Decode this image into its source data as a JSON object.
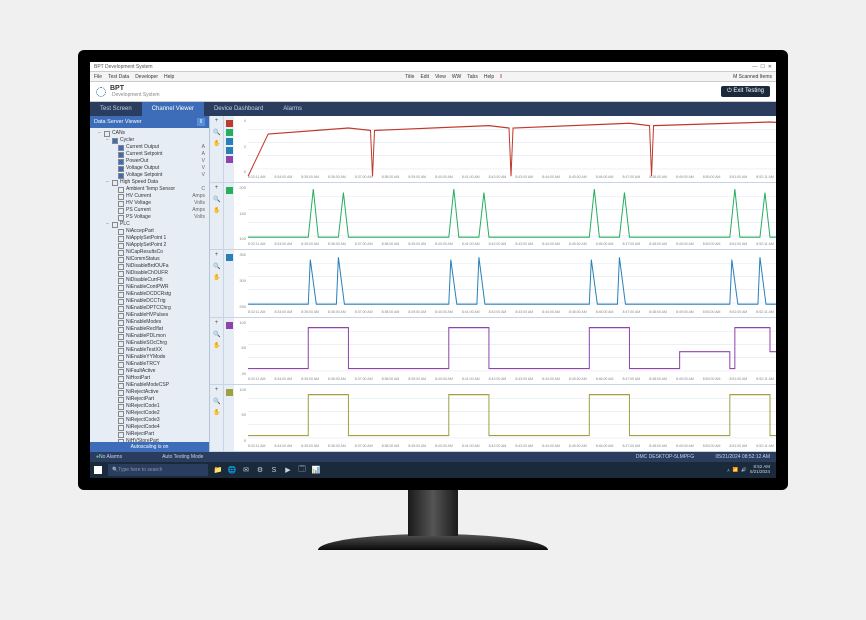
{
  "window": {
    "title": "BPT Development System",
    "menus": [
      "File",
      "Test Data",
      "Developer",
      "Help"
    ],
    "toolbar_right": [
      "Title",
      "Edit",
      "View",
      "WW",
      "Tabs",
      "Help"
    ],
    "scanned_items": "M Scanned Items"
  },
  "app": {
    "name": "BPT",
    "subtitle": "Development System",
    "exit_label": "Exit Testing"
  },
  "tabs": [
    {
      "label": "Test Screen",
      "active": false
    },
    {
      "label": "Channel Viewer",
      "active": true
    },
    {
      "label": "Device Dashboard",
      "active": false
    },
    {
      "label": "Alarms",
      "active": false
    }
  ],
  "sidebar": {
    "title": "Data Server Viewer",
    "footer": "Autoscaling is on",
    "tree": [
      {
        "ind": 1,
        "tog": "−",
        "cb": false,
        "label": "CANs"
      },
      {
        "ind": 2,
        "tog": "−",
        "cb": true,
        "label": "Cycler"
      },
      {
        "ind": 3,
        "cb": true,
        "label": "Current Output",
        "unit": "A"
      },
      {
        "ind": 3,
        "cb": true,
        "label": "Current Setpoint",
        "unit": "A"
      },
      {
        "ind": 3,
        "cb": true,
        "label": "PowerOut",
        "unit": "V"
      },
      {
        "ind": 3,
        "cb": true,
        "label": "Voltage Output",
        "unit": "V"
      },
      {
        "ind": 3,
        "cb": true,
        "label": "Voltage Setpoint",
        "unit": "V"
      },
      {
        "ind": 2,
        "tog": "−",
        "cb": false,
        "label": "High Speed Data"
      },
      {
        "ind": 3,
        "cb": false,
        "label": "Ambient Temp Sensor",
        "unit": "C"
      },
      {
        "ind": 3,
        "cb": false,
        "label": "HV Current",
        "unit": "Amps"
      },
      {
        "ind": 3,
        "cb": false,
        "label": "HV Voltage",
        "unit": "Volts"
      },
      {
        "ind": 3,
        "cb": false,
        "label": "PS Current",
        "unit": "Amps"
      },
      {
        "ind": 3,
        "cb": false,
        "label": "PS Voltage",
        "unit": "Volts"
      },
      {
        "ind": 2,
        "tog": "−",
        "cb": false,
        "label": "PLC"
      },
      {
        "ind": 3,
        "cb": false,
        "label": "NiAccepPart"
      },
      {
        "ind": 3,
        "cb": false,
        "label": "NiApplySetPoint 1"
      },
      {
        "ind": 3,
        "cb": false,
        "label": "NiApplySetPoint 2"
      },
      {
        "ind": 3,
        "cb": false,
        "label": "NiCapResultsCo"
      },
      {
        "ind": 3,
        "cb": false,
        "label": "NiCommStatus"
      },
      {
        "ind": 3,
        "cb": false,
        "label": "NiDisableBrdOUFa"
      },
      {
        "ind": 3,
        "cb": false,
        "label": "NiDisableChOUFR"
      },
      {
        "ind": 3,
        "cb": false,
        "label": "NiDisableCurrFlt"
      },
      {
        "ind": 3,
        "cb": false,
        "label": "NiEnableContPWR"
      },
      {
        "ind": 3,
        "cb": false,
        "label": "NiEnableDCDCRstg"
      },
      {
        "ind": 3,
        "cb": false,
        "label": "NiEnableDCCTrig"
      },
      {
        "ind": 3,
        "cb": false,
        "label": "NiEnableDPTCChrg"
      },
      {
        "ind": 3,
        "cb": false,
        "label": "NiEnableHVPulses"
      },
      {
        "ind": 3,
        "cb": false,
        "label": "NiEnableModes"
      },
      {
        "ind": 3,
        "cb": false,
        "label": "NiEnableReclflat"
      },
      {
        "ind": 3,
        "cb": false,
        "label": "NiEnablePDLmon"
      },
      {
        "ind": 3,
        "cb": false,
        "label": "NiEnableSOcChrg"
      },
      {
        "ind": 3,
        "cb": false,
        "label": "NiEnableTestXX"
      },
      {
        "ind": 3,
        "cb": false,
        "label": "NiEnableYYMode"
      },
      {
        "ind": 3,
        "cb": false,
        "label": "NiEnableTRCY"
      },
      {
        "ind": 3,
        "cb": false,
        "label": "NiFaultActive"
      },
      {
        "ind": 3,
        "cb": false,
        "label": "NiHostPart"
      },
      {
        "ind": 3,
        "cb": false,
        "label": "NiEnableModeCSP"
      },
      {
        "ind": 3,
        "cb": false,
        "label": "NiRejectActive"
      },
      {
        "ind": 3,
        "cb": false,
        "label": "NiRejectPart"
      },
      {
        "ind": 3,
        "cb": false,
        "label": "NiRejectCode1"
      },
      {
        "ind": 3,
        "cb": false,
        "label": "NiRejectCode2"
      },
      {
        "ind": 3,
        "cb": false,
        "label": "NiRejectCode3"
      },
      {
        "ind": 3,
        "cb": false,
        "label": "NiRejectCode4"
      },
      {
        "ind": 3,
        "cb": false,
        "label": "NiRejectPart"
      },
      {
        "ind": 3,
        "cb": false,
        "label": "NiHVStorePart"
      },
      {
        "ind": 3,
        "cb": false,
        "label": "NiRecommRequired"
      }
    ]
  },
  "charts": {
    "time_ticks": [
      "8:32:11 AM",
      "8:34:00 AM",
      "8:35:00 AM",
      "8:36:00 AM",
      "8:37:00 AM",
      "8:38:00 AM",
      "8:39:00 AM",
      "8:40:00 AM",
      "8:41:00 AM",
      "8:42:00 AM",
      "8:43:00 AM",
      "8:44:00 AM",
      "8:45:00 AM",
      "8:46:00 AM",
      "8:47:00 AM",
      "8:48:00 AM",
      "8:49:00 AM",
      "8:50:00 AM",
      "8:51:00 AM",
      "8:52:11 AM"
    ],
    "strips": [
      {
        "type": "line",
        "yticks": [
          "4",
          "2",
          "0"
        ],
        "colors": [
          "#c0392b",
          "#27ae60",
          "#2980b9",
          "#2980b9",
          "#8e44ad"
        ],
        "grid_color": "#e0e8f0",
        "paths": [
          "M0,50 L20,15 L100,10 L122,12 L124,50 L126,12 L240,8 L260,10 L262,50 L264,10 L380,6 L400,8 L402,50 L404,8 L520,5 L540,6 L540,48"
        ],
        "stroke": "#c0392b"
      },
      {
        "type": "line",
        "yticks": [
          "200",
          "150",
          "100"
        ],
        "colors": [
          "#27ae60"
        ],
        "grid_color": "#e0e8f0",
        "paths": [
          "M0,45 L60,45 L65,5 L70,45 L90,45 L95,8 L100,45 L200,45 L205,5 L210,45 L230,45 L235,8 L240,45 L340,45 L345,5 L350,45 L370,45 L375,8 L380,45 L480,45 L485,5 L490,45 L510,45 L515,8 L520,45 L540,45"
        ],
        "stroke": "#27ae60"
      },
      {
        "type": "line",
        "yticks": [
          "350",
          "300",
          "250"
        ],
        "colors": [
          "#2980b9"
        ],
        "grid_color": "#e0e8f0",
        "paths": [
          "M0,45 L60,45 L62,8 L68,45 L88,45 L90,6 L96,45 L200,45 L202,8 L208,45 L228,45 L230,6 L236,45 L340,45 L342,8 L348,45 L368,45 L370,6 L376,45 L480,45 L482,8 L488,45 L508,45 L510,6 L516,45 L540,45"
        ],
        "stroke": "#2980b9"
      },
      {
        "type": "step",
        "yticks": [
          "100",
          "60",
          "40"
        ],
        "colors": [
          "#8e44ad"
        ],
        "grid_color": "#e0e8f0",
        "paths": [
          "M0,42 L60,42 L60,8 L100,8 L100,42 L200,42 L200,8 L240,8 L240,42 L340,42 L340,8 L380,8 L380,42 L430,42 L430,28 L480,28 L480,42 L485,42 L485,8 L520,8 L520,28 L540,28"
        ],
        "stroke": "#8e44ad"
      },
      {
        "type": "step",
        "yticks": [
          "100",
          "50",
          "0"
        ],
        "colors": [
          "#a0a040"
        ],
        "grid_color": "#e0e8f0",
        "paths": [
          "M0,42 L60,42 L60,8 L100,8 L100,42 L200,42 L200,8 L240,8 L240,42 L340,42 L340,8 L380,8 L380,42 L480,42 L480,8 L520,8 L520,42 L540,42"
        ],
        "stroke": "#a0a040"
      }
    ]
  },
  "statusbar": {
    "no_alarms": "No Alarms",
    "mode": "Auto Testing Mode",
    "host": "DMC  DESKTOP-5LMPFG",
    "datetime": "05/21/2024 08:52:12 AM"
  },
  "taskbar": {
    "search_placeholder": "Type here to search",
    "icons": [
      "📁",
      "🌐",
      "✉",
      "⚙",
      "S",
      "▶",
      "🗔",
      "📊"
    ],
    "tray_time": "8:52 AM",
    "tray_date": "5/21/2024"
  }
}
